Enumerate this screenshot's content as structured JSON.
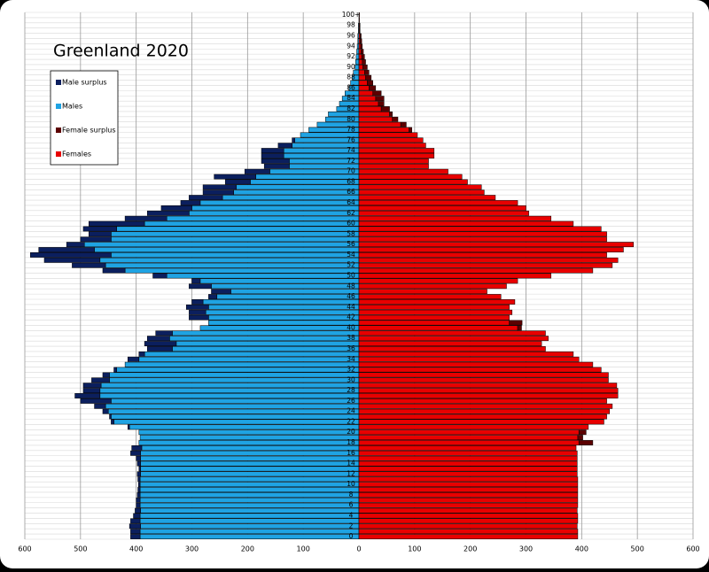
{
  "chart_data": {
    "type": "pyramid",
    "title": "Greenland 2020",
    "categories": [
      "0",
      null,
      "2",
      null,
      "4",
      null,
      "6",
      null,
      "8",
      null,
      "10",
      null,
      "12",
      null,
      "14",
      null,
      "16",
      null,
      "18",
      null,
      "20",
      null,
      "22",
      null,
      "24",
      null,
      "26",
      null,
      "28",
      null,
      "30",
      null,
      "32",
      null,
      "34",
      null,
      "36",
      null,
      "38",
      null,
      "40",
      null,
      "42",
      null,
      "44",
      null,
      "46",
      null,
      "48",
      null,
      "50",
      null,
      "52",
      null,
      "54",
      null,
      "56",
      null,
      "58",
      null,
      "60",
      null,
      "62",
      null,
      "64",
      null,
      "66",
      null,
      "68",
      null,
      "70",
      null,
      "72",
      null,
      "74",
      null,
      "76",
      null,
      "78",
      null,
      "80",
      null,
      "82",
      null,
      "84",
      null,
      "86",
      null,
      "88",
      null,
      "90",
      null,
      "92",
      null,
      "94",
      null,
      "96",
      null,
      "98",
      null,
      "100+"
    ],
    "xlim": [
      0,
      600
    ],
    "xticks": [
      0,
      100,
      200,
      300,
      400,
      500,
      600
    ],
    "grid": true,
    "series": [
      {
        "name": "Male surplus",
        "color": "#0b1f5e",
        "side": "left",
        "values": [
          17,
          17,
          20,
          17,
          12,
          10,
          7,
          7,
          5,
          4,
          3,
          4,
          6,
          3,
          6,
          8,
          18,
          18,
          0,
          0,
          0,
          3,
          5,
          3,
          10,
          20,
          55,
          45,
          30,
          32,
          32,
          12,
          5,
          0,
          20,
          10,
          45,
          57,
          40,
          30,
          0,
          0,
          35,
          30,
          40,
          20,
          15,
          35,
          40,
          15,
          25,
          40,
          60,
          100,
          145,
          100,
          32,
          55,
          40,
          60,
          100,
          75,
          75,
          55,
          35,
          60,
          55,
          60,
          45,
          75,
          45,
          45,
          50,
          40,
          40,
          25,
          5,
          0,
          0,
          0,
          0,
          0,
          0,
          0,
          0,
          0,
          0,
          0,
          0,
          0,
          0,
          0,
          0,
          0,
          0,
          0,
          0,
          0,
          0,
          0,
          0
        ]
      },
      {
        "name": "Males",
        "color": "#1fa3e3",
        "side": "left",
        "values": [
          393,
          393,
          392,
          393,
          393,
          392,
          393,
          393,
          393,
          393,
          393,
          393,
          392,
          392,
          392,
          392,
          392,
          390,
          395,
          393,
          395,
          412,
          440,
          445,
          450,
          455,
          445,
          465,
          465,
          463,
          448,
          448,
          435,
          420,
          395,
          385,
          335,
          328,
          340,
          335,
          285,
          270,
          270,
          275,
          270,
          280,
          255,
          230,
          265,
          285,
          345,
          420,
          455,
          465,
          445,
          475,
          493,
          445,
          445,
          435,
          385,
          345,
          305,
          300,
          285,
          245,
          225,
          220,
          195,
          185,
          160,
          125,
          125,
          135,
          135,
          120,
          115,
          105,
          90,
          75,
          60,
          55,
          40,
          35,
          30,
          25,
          18,
          15,
          12,
          10,
          7,
          6,
          5,
          4,
          3,
          2,
          2,
          1,
          1,
          0,
          0
        ]
      },
      {
        "name": "Female surplus",
        "color": "#5c0000",
        "side": "right",
        "values": [
          0,
          0,
          0,
          0,
          0,
          0,
          0,
          0,
          0,
          0,
          0,
          0,
          0,
          0,
          0,
          0,
          0,
          0,
          25,
          9,
          13,
          0,
          0,
          0,
          0,
          0,
          0,
          0,
          0,
          0,
          0,
          0,
          0,
          0,
          0,
          0,
          0,
          0,
          0,
          0,
          7,
          23,
          0,
          0,
          0,
          0,
          0,
          0,
          0,
          0,
          0,
          0,
          0,
          0,
          0,
          0,
          0,
          0,
          0,
          0,
          0,
          0,
          0,
          0,
          0,
          0,
          0,
          0,
          0,
          0,
          0,
          0,
          0,
          0,
          0,
          0,
          0,
          0,
          5,
          10,
          10,
          5,
          15,
          10,
          15,
          15,
          12,
          10,
          10,
          8,
          8,
          6,
          5,
          4,
          3,
          3,
          2,
          1,
          1,
          1,
          1
        ]
      },
      {
        "name": "Females",
        "color": "#e80000",
        "side": "right",
        "values": [
          393,
          393,
          392,
          393,
          393,
          392,
          393,
          393,
          393,
          393,
          393,
          393,
          392,
          392,
          392,
          392,
          392,
          390,
          395,
          393,
          395,
          412,
          440,
          445,
          450,
          455,
          445,
          465,
          465,
          463,
          448,
          448,
          435,
          420,
          395,
          385,
          335,
          328,
          340,
          335,
          285,
          270,
          270,
          275,
          270,
          280,
          255,
          230,
          265,
          285,
          345,
          420,
          455,
          465,
          445,
          475,
          493,
          445,
          445,
          435,
          385,
          345,
          305,
          300,
          285,
          245,
          225,
          220,
          195,
          185,
          160,
          125,
          125,
          135,
          135,
          120,
          115,
          105,
          90,
          75,
          60,
          55,
          40,
          35,
          30,
          25,
          18,
          15,
          12,
          10,
          7,
          6,
          5,
          4,
          3,
          2,
          2,
          1,
          1,
          0,
          0
        ]
      }
    ]
  }
}
